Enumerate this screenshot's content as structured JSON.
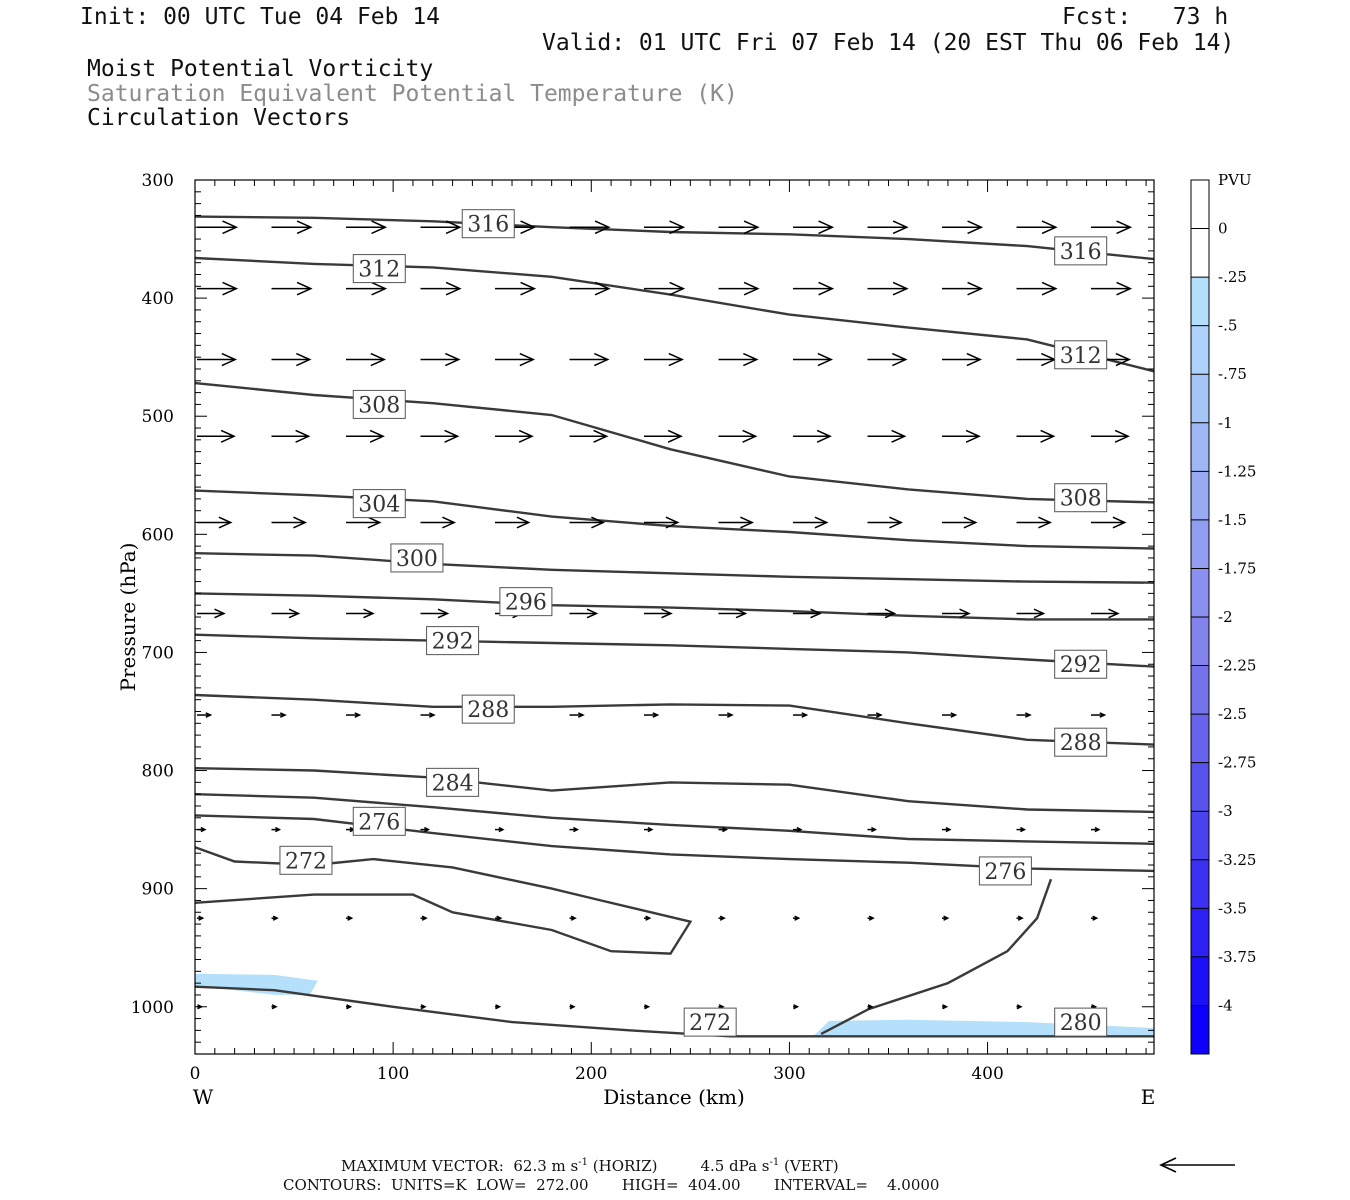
{
  "header": {
    "init": "Init: 00 UTC Tue 04 Feb 14",
    "fcst": "Fcst:   73 h",
    "valid": "Valid: 01 UTC Fri 07 Feb 14 (20 EST Thu 06 Feb 14)",
    "field1": "Moist Potential Vorticity",
    "field2": "Saturation Equivalent Potential Temperature (K)",
    "field3": "Circulation Vectors"
  },
  "footer": {
    "max_vector_label": "MAXIMUM VECTOR:",
    "horiz_value": "62.3 m s",
    "horiz_unit": "(HORIZ)",
    "vert_value": "4.5 dPa s",
    "vert_unit": "(VERT)",
    "exponent": "-1",
    "contours_line": "CONTOURS:  UNITS=K  LOW=  272.00       HIGH=  404.00       INTERVAL=    4.0000"
  },
  "colors": {
    "contour": "#3a3a3a",
    "vector": "#000000",
    "pv_light": "#b4e0fb"
  },
  "chart_data": {
    "type": "cross-section",
    "xlabel": "Distance (km)",
    "ylabel": "Pressure (hPa)",
    "xlim": [
      0,
      484
    ],
    "ylim": [
      300,
      1040
    ],
    "y_scale": "pressure (inverted)",
    "x_ticks": [
      0,
      100,
      200,
      300,
      400
    ],
    "y_ticks": [
      300,
      400,
      500,
      600,
      700,
      800,
      900,
      1000
    ],
    "x_end_labels": {
      "left": "W",
      "right": "E"
    },
    "colorbar": {
      "title": "PVU",
      "levels": [
        "0",
        "-.25",
        "-.5",
        "-.75",
        "-1",
        "-1.25",
        "-1.5",
        "-1.75",
        "-2",
        "-2.25",
        "-2.5",
        "-2.75",
        "-3",
        "-3.25",
        "-3.5",
        "-3.75",
        "-4"
      ],
      "colors": [
        "#ffffff",
        "#ffffff",
        "#b4e0fb",
        "#aed2fa",
        "#a6c5f7",
        "#9fb8f5",
        "#98abf3",
        "#919ef1",
        "#8a90ef",
        "#8383ed",
        "#7573ec",
        "#6763ec",
        "#5953ed",
        "#4a42ef",
        "#3b31f2",
        "#2c20f5",
        "#1d10f8",
        "#0e00fb"
      ]
    },
    "theta_es_contours": [
      {
        "value": 316,
        "points": [
          [
            0,
            331
          ],
          [
            60,
            332
          ],
          [
            120,
            335
          ],
          [
            180,
            340
          ],
          [
            240,
            344
          ],
          [
            300,
            346
          ],
          [
            360,
            350
          ],
          [
            420,
            356
          ],
          [
            484,
            367
          ]
        ],
        "labels": [
          [
            148,
            337
          ],
          [
            447,
            360
          ]
        ]
      },
      {
        "value": 312,
        "points": [
          [
            0,
            366
          ],
          [
            60,
            371
          ],
          [
            120,
            374
          ],
          [
            180,
            382
          ],
          [
            240,
            397
          ],
          [
            300,
            414
          ],
          [
            360,
            425
          ],
          [
            420,
            435
          ],
          [
            484,
            462
          ]
        ],
        "labels": [
          [
            93,
            375
          ],
          [
            447,
            448
          ]
        ]
      },
      {
        "value": 308,
        "points": [
          [
            0,
            472
          ],
          [
            60,
            482
          ],
          [
            120,
            489
          ],
          [
            180,
            499
          ],
          [
            240,
            528
          ],
          [
            300,
            551
          ],
          [
            360,
            562
          ],
          [
            420,
            570
          ],
          [
            484,
            573
          ]
        ],
        "labels": [
          [
            93,
            490
          ],
          [
            447,
            569
          ]
        ]
      },
      {
        "value": 304,
        "points": [
          [
            0,
            563
          ],
          [
            60,
            567
          ],
          [
            120,
            572
          ],
          [
            180,
            585
          ],
          [
            240,
            593
          ],
          [
            300,
            598
          ],
          [
            360,
            605
          ],
          [
            420,
            610
          ],
          [
            484,
            612
          ]
        ],
        "labels": [
          [
            93,
            574
          ]
        ]
      },
      {
        "value": 300,
        "points": [
          [
            0,
            616
          ],
          [
            60,
            618
          ],
          [
            120,
            625
          ],
          [
            180,
            630
          ],
          [
            240,
            633
          ],
          [
            300,
            636
          ],
          [
            360,
            638
          ],
          [
            420,
            640
          ],
          [
            484,
            641
          ]
        ],
        "labels": [
          [
            112,
            620
          ]
        ]
      },
      {
        "value": 296,
        "points": [
          [
            0,
            650
          ],
          [
            60,
            652
          ],
          [
            120,
            655
          ],
          [
            180,
            660
          ],
          [
            240,
            662
          ],
          [
            300,
            665
          ],
          [
            360,
            669
          ],
          [
            420,
            672
          ],
          [
            484,
            672
          ]
        ],
        "labels": [
          [
            167,
            657
          ]
        ]
      },
      {
        "value": 292,
        "points": [
          [
            0,
            685
          ],
          [
            60,
            688
          ],
          [
            120,
            690
          ],
          [
            180,
            692
          ],
          [
            240,
            694
          ],
          [
            300,
            697
          ],
          [
            360,
            700
          ],
          [
            420,
            706
          ],
          [
            484,
            712
          ]
        ],
        "labels": [
          [
            130,
            690
          ],
          [
            447,
            710
          ]
        ]
      },
      {
        "value": 288,
        "points": [
          [
            0,
            736
          ],
          [
            60,
            740
          ],
          [
            120,
            746
          ],
          [
            180,
            746
          ],
          [
            240,
            744
          ],
          [
            300,
            745
          ],
          [
            360,
            760
          ],
          [
            420,
            774
          ],
          [
            484,
            778
          ]
        ],
        "labels": [
          [
            148,
            748
          ],
          [
            447,
            776
          ]
        ]
      },
      {
        "value": 284,
        "points": [
          [
            0,
            798
          ],
          [
            60,
            800
          ],
          [
            120,
            806
          ],
          [
            180,
            817
          ],
          [
            240,
            810
          ],
          [
            300,
            812
          ],
          [
            360,
            826
          ],
          [
            420,
            833
          ],
          [
            484,
            835
          ]
        ],
        "labels": [
          [
            130,
            810
          ]
        ]
      },
      {
        "value": 280,
        "points": [
          [
            0,
            820
          ],
          [
            60,
            823
          ],
          [
            120,
            831
          ],
          [
            180,
            840
          ],
          [
            240,
            846
          ],
          [
            300,
            851
          ],
          [
            360,
            858
          ],
          [
            420,
            860
          ],
          [
            484,
            862
          ]
        ],
        "labels": [
          [
            447,
            1013
          ]
        ]
      },
      {
        "value": 276,
        "points": [
          [
            0,
            838
          ],
          [
            60,
            841
          ],
          [
            120,
            853
          ],
          [
            180,
            864
          ],
          [
            240,
            871
          ],
          [
            300,
            875
          ],
          [
            360,
            878
          ],
          [
            420,
            883
          ],
          [
            484,
            885
          ]
        ],
        "labels": [
          [
            93,
            843
          ],
          [
            409,
            885
          ]
        ]
      },
      {
        "value": 272,
        "points": [
          [
            0,
            865
          ],
          [
            20,
            877
          ],
          [
            60,
            880
          ],
          [
            90,
            875
          ],
          [
            130,
            882
          ],
          [
            180,
            900
          ],
          [
            205,
            910
          ],
          [
            250,
            928
          ],
          [
            240,
            955
          ],
          [
            210,
            953
          ],
          [
            180,
            935
          ],
          [
            130,
            920
          ],
          [
            110,
            905
          ],
          [
            60,
            905
          ],
          [
            0,
            912
          ]
        ],
        "labels": [
          [
            56,
            876
          ],
          [
            260,
            1013
          ]
        ]
      },
      {
        "value": 276,
        "points": [
          [
            316,
            1023
          ],
          [
            340,
            1002
          ],
          [
            380,
            980
          ],
          [
            410,
            953
          ],
          [
            425,
            925
          ],
          [
            432,
            892
          ]
        ],
        "labels": []
      },
      {
        "value": 272,
        "points": [
          [
            0,
            983
          ],
          [
            40,
            986
          ],
          [
            100,
            1000
          ],
          [
            160,
            1013
          ],
          [
            220,
            1020
          ],
          [
            270,
            1025
          ],
          [
            316,
            1025
          ],
          [
            400,
            1025
          ],
          [
            484,
            1025
          ]
        ],
        "labels": []
      }
    ],
    "pv_regions": [
      {
        "pv": -0.5,
        "points": [
          [
            0,
            972
          ],
          [
            40,
            973
          ],
          [
            62,
            978
          ],
          [
            58,
            990
          ],
          [
            40,
            990
          ],
          [
            0,
            982
          ]
        ]
      },
      {
        "pv": -0.5,
        "points": [
          [
            312,
            1025
          ],
          [
            320,
            1012
          ],
          [
            360,
            1011
          ],
          [
            420,
            1013
          ],
          [
            484,
            1018
          ],
          [
            484,
            1025
          ]
        ]
      }
    ],
    "vector_rows": [
      {
        "pressure": 340,
        "u": 35,
        "w": 0
      },
      {
        "pressure": 392,
        "u": 35,
        "w": 0
      },
      {
        "pressure": 452,
        "u": 34,
        "w": 0
      },
      {
        "pressure": 517,
        "u": 33,
        "w": 0
      },
      {
        "pressure": 590,
        "u": 30,
        "w": 0
      },
      {
        "pressure": 667,
        "u": 24,
        "w": 0
      },
      {
        "pressure": 753,
        "u": 12,
        "w": 0
      },
      {
        "pressure": 850,
        "u": 7,
        "w": 0
      },
      {
        "pressure": 925,
        "u": 5,
        "w": 0
      },
      {
        "pressure": 1000,
        "u": 4,
        "w": 0
      }
    ],
    "max_vector": {
      "horiz": 62.3,
      "vert": 4.5
    }
  }
}
